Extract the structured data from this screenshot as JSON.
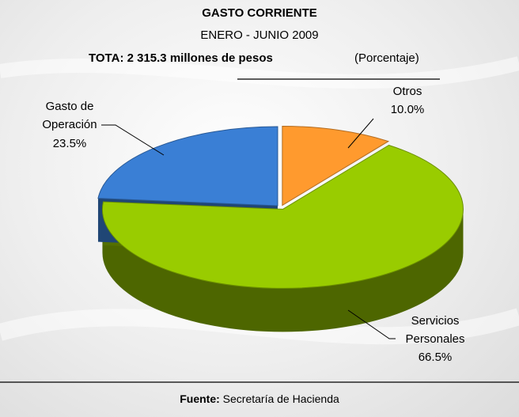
{
  "chart_data": {
    "type": "pie",
    "title": "GASTO CORRIENTE",
    "subtitle": "ENERO - JUNIO 2009",
    "total": "TOTA: 2 315.3 millones de pesos",
    "unit": "(Porcentaje)",
    "categories": [
      "Otros",
      "Servicios Personales",
      "Gasto de Operación"
    ],
    "values": [
      10.0,
      66.5,
      23.5
    ],
    "value_labels": [
      "10.0%",
      "66.5%",
      "23.5%"
    ],
    "colors": [
      "#ff9a2e",
      "#99cc00",
      "#3a7fd5"
    ],
    "source_label": "Fuente:",
    "source": "Secretaría de Hacienda"
  }
}
